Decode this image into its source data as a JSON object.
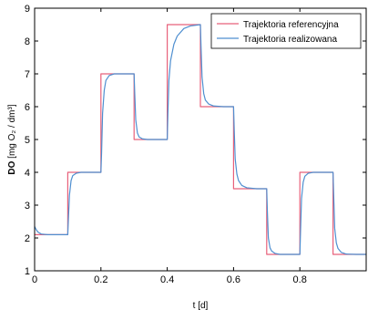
{
  "chart_data": {
    "type": "line",
    "xlabel": "t [d]",
    "ylabel_bold": "DO",
    "ylabel_rest": " [mg O₂ / dm³]",
    "xlim": [
      0,
      1
    ],
    "ylim": [
      1,
      9
    ],
    "xticks": [
      "0",
      "0.2",
      "0.4",
      "0.6",
      "0.8"
    ],
    "xtick_values": [
      0,
      0.2,
      0.4,
      0.6,
      0.8
    ],
    "yticks": [
      "1",
      "2",
      "3",
      "4",
      "5",
      "6",
      "7",
      "8",
      "9"
    ],
    "ytick_values": [
      1,
      2,
      3,
      4,
      5,
      6,
      7,
      8,
      9
    ],
    "grid": false,
    "legend_position": "top-right",
    "series": [
      {
        "name": "Trajektoria referencyjna",
        "color": "#e8607a",
        "style": "step",
        "x": [
          0,
          0.1,
          0.1,
          0.2,
          0.2,
          0.3,
          0.3,
          0.4,
          0.4,
          0.5,
          0.5,
          0.6,
          0.6,
          0.7,
          0.7,
          0.8,
          0.8,
          0.9,
          0.9,
          1.0
        ],
        "y": [
          2.1,
          2.1,
          4.0,
          4.0,
          7.0,
          7.0,
          5.0,
          5.0,
          8.5,
          8.5,
          6.0,
          6.0,
          3.5,
          3.5,
          1.5,
          1.5,
          4.0,
          4.0,
          1.5,
          1.5
        ]
      },
      {
        "name": "Trajektoria realizowana",
        "color": "#4f8fd0",
        "style": "smooth",
        "x": [
          0,
          0.005,
          0.01,
          0.02,
          0.04,
          0.07,
          0.1,
          0.102,
          0.105,
          0.11,
          0.115,
          0.125,
          0.14,
          0.17,
          0.2,
          0.202,
          0.205,
          0.21,
          0.215,
          0.225,
          0.24,
          0.27,
          0.3,
          0.302,
          0.305,
          0.31,
          0.315,
          0.325,
          0.34,
          0.37,
          0.4,
          0.402,
          0.405,
          0.41,
          0.42,
          0.43,
          0.45,
          0.47,
          0.5,
          0.502,
          0.505,
          0.51,
          0.515,
          0.525,
          0.54,
          0.57,
          0.6,
          0.602,
          0.605,
          0.61,
          0.615,
          0.625,
          0.64,
          0.67,
          0.7,
          0.702,
          0.705,
          0.71,
          0.715,
          0.725,
          0.74,
          0.77,
          0.8,
          0.802,
          0.805,
          0.81,
          0.815,
          0.825,
          0.84,
          0.87,
          0.9,
          0.902,
          0.905,
          0.91,
          0.915,
          0.925,
          0.94,
          0.97,
          1.0
        ],
        "y": [
          2.35,
          2.25,
          2.18,
          2.12,
          2.1,
          2.1,
          2.1,
          2.6,
          3.3,
          3.75,
          3.9,
          3.97,
          4.0,
          4.0,
          4.0,
          4.6,
          5.8,
          6.5,
          6.8,
          6.95,
          7.0,
          7.0,
          7.0,
          6.4,
          5.6,
          5.2,
          5.08,
          5.02,
          5.0,
          5.0,
          5.0,
          5.8,
          6.8,
          7.4,
          7.9,
          8.15,
          8.38,
          8.46,
          8.5,
          7.8,
          6.9,
          6.4,
          6.2,
          6.08,
          6.02,
          6.0,
          6.0,
          5.3,
          4.4,
          3.95,
          3.75,
          3.6,
          3.53,
          3.5,
          3.5,
          2.8,
          2.0,
          1.7,
          1.6,
          1.53,
          1.5,
          1.5,
          1.5,
          2.2,
          3.2,
          3.7,
          3.88,
          3.97,
          4.0,
          4.0,
          4.0,
          3.3,
          2.3,
          1.85,
          1.68,
          1.56,
          1.51,
          1.5,
          1.5
        ]
      }
    ]
  }
}
